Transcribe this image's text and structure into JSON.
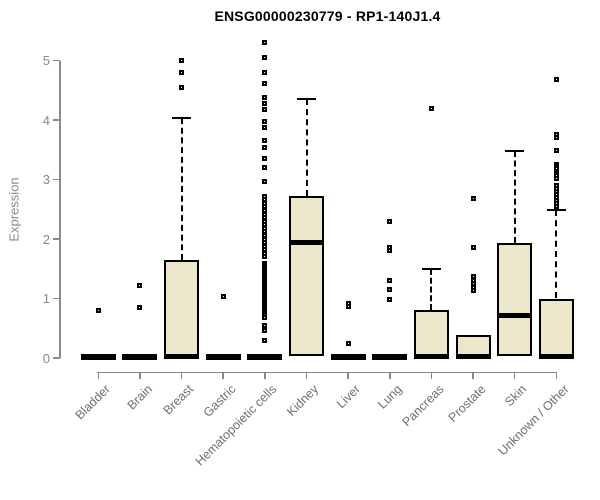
{
  "title": "ENSG00000230779 - RP1-140J1.4",
  "colors": {
    "box_fill": "#ece6cb",
    "box_border": "#000000",
    "axis": "#8a8a8a",
    "y_tick_label": "#8a8a8a",
    "x_tick_label": "#6f6f6f",
    "title": "#000000",
    "background": "#ffffff"
  },
  "chart_data": {
    "type": "boxplot",
    "title": "ENSG00000230779 - RP1-140J1.4",
    "xlabel": "",
    "ylabel": "Expression",
    "ylim": [
      0,
      5.4
    ],
    "yticks": [
      0,
      1,
      2,
      3,
      4,
      5
    ],
    "grid": "off",
    "categories": [
      "Bladder",
      "Brain",
      "Breast",
      "Gastric",
      "Hematopoietic cells",
      "Kidney",
      "Liver",
      "Lung",
      "Pancreas",
      "Prostate",
      "Skin",
      "Unknown / Other"
    ],
    "series": [
      {
        "label": "Bladder",
        "q1": 0,
        "median": 0.02,
        "q3": 0.04,
        "whisker_low": null,
        "whisker_high": null,
        "outliers": [
          0.8
        ]
      },
      {
        "label": "Brain",
        "q1": 0,
        "median": 0.02,
        "q3": 0.04,
        "whisker_low": null,
        "whisker_high": null,
        "outliers": [
          1.22,
          0.85
        ]
      },
      {
        "label": "Breast",
        "q1": 0,
        "median": 0.03,
        "q3": 1.65,
        "whisker_low": null,
        "whisker_high": 4.04,
        "outliers": [
          5.0,
          4.8,
          4.55
        ]
      },
      {
        "label": "Gastric",
        "q1": 0,
        "median": 0.02,
        "q3": 0.04,
        "whisker_low": null,
        "whisker_high": null,
        "outliers": [
          1.03
        ]
      },
      {
        "label": "Hematopoietic cells",
        "q1": 0,
        "median": 0.02,
        "q3": 0.04,
        "whisker_low": null,
        "whisker_high": null,
        "outliers": [
          5.3,
          5.05,
          4.8,
          4.62,
          4.37,
          4.28,
          4.17,
          3.97,
          3.88,
          3.66,
          3.53,
          3.36,
          3.21,
          2.96,
          2.72,
          2.66,
          2.6,
          2.54,
          2.48,
          2.42,
          2.36,
          2.3,
          2.24,
          2.18,
          2.12,
          2.06,
          2.0,
          1.94,
          1.88,
          1.82,
          1.76,
          1.7,
          1.58,
          1.55,
          1.52,
          1.49,
          1.46,
          1.43,
          1.4,
          1.37,
          1.34,
          1.31,
          1.28,
          1.25,
          1.22,
          1.19,
          1.16,
          1.13,
          1.1,
          1.07,
          1.04,
          1.01,
          0.98,
          0.95,
          0.92,
          0.89,
          0.86,
          0.83,
          0.8,
          0.77,
          0.74,
          0.71,
          0.68,
          0.55,
          0.47,
          0.3
        ]
      },
      {
        "label": "Kidney",
        "q1": 0.04,
        "median": 1.94,
        "q3": 2.73,
        "whisker_low": null,
        "whisker_high": 4.36,
        "outliers": []
      },
      {
        "label": "Liver",
        "q1": 0,
        "median": 0.02,
        "q3": 0.04,
        "whisker_low": null,
        "whisker_high": null,
        "outliers": [
          0.92,
          0.87,
          0.25
        ]
      },
      {
        "label": "Lung",
        "q1": 0,
        "median": 0.02,
        "q3": 0.04,
        "whisker_low": null,
        "whisker_high": null,
        "outliers": [
          2.3,
          1.86,
          1.8,
          1.31,
          1.15,
          0.99
        ]
      },
      {
        "label": "Pancreas",
        "q1": 0,
        "median": 0.03,
        "q3": 0.8,
        "whisker_low": null,
        "whisker_high": 1.5,
        "outliers": [
          4.2
        ]
      },
      {
        "label": "Prostate",
        "q1": 0,
        "median": 0.03,
        "q3": 0.38,
        "whisker_low": null,
        "whisker_high": null,
        "outliers": [
          2.68,
          1.85,
          1.37,
          1.3,
          1.25,
          1.19,
          1.14
        ]
      },
      {
        "label": "Skin",
        "q1": 0.03,
        "median": 0.72,
        "q3": 1.93,
        "whisker_low": null,
        "whisker_high": 3.48,
        "outliers": []
      },
      {
        "label": "Unknown / Other",
        "q1": 0,
        "median": 0.03,
        "q3": 1.0,
        "whisker_low": null,
        "whisker_high": 2.48,
        "outliers": [
          4.68,
          3.75,
          3.7,
          3.49,
          3.26,
          3.22,
          3.18,
          3.14,
          3.1,
          3.06,
          3.02,
          2.9,
          2.85,
          2.8,
          2.75,
          2.7,
          2.65,
          2.6,
          2.55
        ]
      }
    ],
    "legend": "none"
  }
}
